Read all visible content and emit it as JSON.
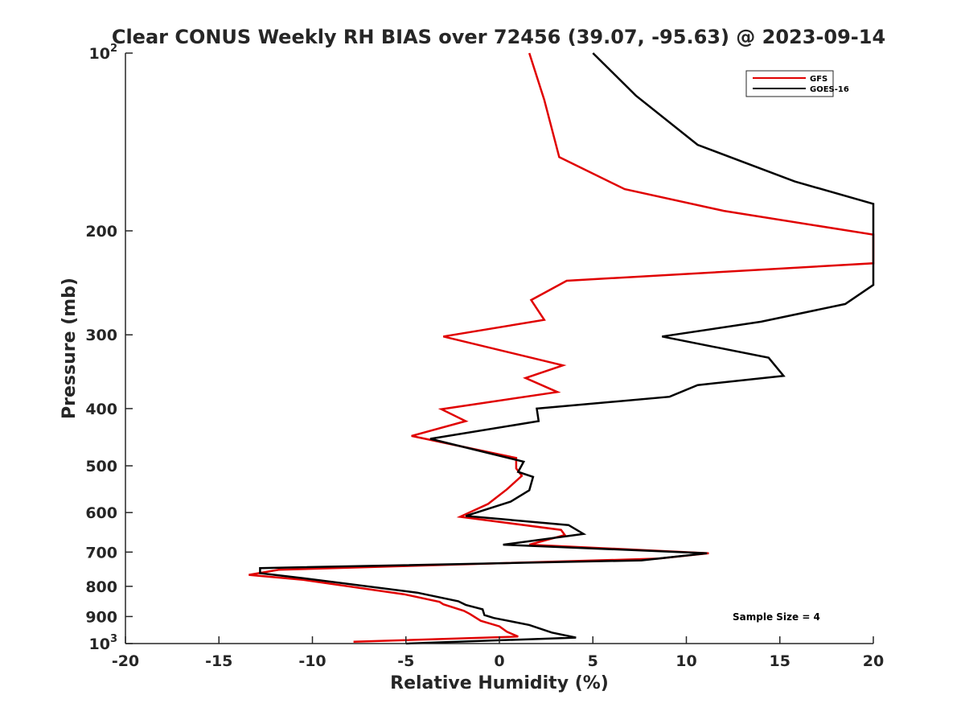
{
  "chart_data": {
    "type": "line",
    "title": "Clear CONUS Weekly RH BIAS over 72456 (39.07, -95.63) @ 2023-09-14",
    "xlabel": "Relative Humidity (%)",
    "ylabel": "Pressure (mb)",
    "xlim": [
      -20,
      20
    ],
    "ylim": [
      1000,
      100
    ],
    "y_scale": "log",
    "x_ticks": [
      "-20",
      "-15",
      "-10",
      "-5",
      "0",
      "5",
      "10",
      "15",
      "20"
    ],
    "x_tick_values": [
      -20,
      -15,
      -10,
      -5,
      0,
      5,
      10,
      15,
      20
    ],
    "y_ticks": [
      {
        "value": 100,
        "base": "10",
        "exp": "2"
      },
      {
        "value": 200,
        "label": "200"
      },
      {
        "value": 300,
        "label": "300"
      },
      {
        "value": 400,
        "label": "400"
      },
      {
        "value": 500,
        "label": "500"
      },
      {
        "value": 600,
        "label": "600"
      },
      {
        "value": 700,
        "label": "700"
      },
      {
        "value": 800,
        "label": "800"
      },
      {
        "value": 900,
        "label": "900"
      },
      {
        "value": 1000,
        "base": "10",
        "exp": "3"
      }
    ],
    "legend_position": "top-right",
    "annotation": "Sample Size = 4",
    "series": [
      {
        "name": "GFS",
        "color": "#e00000",
        "points": [
          {
            "x": 1.6,
            "p": 100
          },
          {
            "x": 2.4,
            "p": 120
          },
          {
            "x": 3.2,
            "p": 150
          },
          {
            "x": 6.7,
            "p": 170
          },
          {
            "x": 12.0,
            "p": 185
          },
          {
            "x": 20.0,
            "p": 203
          },
          {
            "x": 20.0,
            "p": 227
          },
          {
            "x": 3.6,
            "p": 243
          },
          {
            "x": 1.7,
            "p": 262
          },
          {
            "x": 2.4,
            "p": 283
          },
          {
            "x": -3.0,
            "p": 302
          },
          {
            "x": 3.4,
            "p": 338
          },
          {
            "x": 1.4,
            "p": 355
          },
          {
            "x": 3.1,
            "p": 375
          },
          {
            "x": -3.1,
            "p": 401
          },
          {
            "x": -1.8,
            "p": 420
          },
          {
            "x": -4.7,
            "p": 445
          },
          {
            "x": 0.9,
            "p": 485
          },
          {
            "x": 0.9,
            "p": 505
          },
          {
            "x": 1.2,
            "p": 520
          },
          {
            "x": 0.4,
            "p": 548
          },
          {
            "x": -0.6,
            "p": 580
          },
          {
            "x": -2.1,
            "p": 610
          },
          {
            "x": 3.3,
            "p": 642
          },
          {
            "x": 3.5,
            "p": 655
          },
          {
            "x": 1.6,
            "p": 680
          },
          {
            "x": 11.2,
            "p": 703
          },
          {
            "x": 8.5,
            "p": 718
          },
          {
            "x": -11.8,
            "p": 750
          },
          {
            "x": -13.4,
            "p": 765
          },
          {
            "x": -10.5,
            "p": 780
          },
          {
            "x": -5.1,
            "p": 825
          },
          {
            "x": -3.2,
            "p": 850
          },
          {
            "x": -3.0,
            "p": 858
          },
          {
            "x": -1.9,
            "p": 880
          },
          {
            "x": -1.6,
            "p": 890
          },
          {
            "x": -1.0,
            "p": 915
          },
          {
            "x": 0.0,
            "p": 935
          },
          {
            "x": 0.4,
            "p": 955
          },
          {
            "x": 1.0,
            "p": 973
          },
          {
            "x": -7.8,
            "p": 993
          }
        ]
      },
      {
        "name": "GOES-16",
        "color": "#000000",
        "points": [
          {
            "x": 5.0,
            "p": 100
          },
          {
            "x": 7.3,
            "p": 118
          },
          {
            "x": 10.6,
            "p": 143
          },
          {
            "x": 15.8,
            "p": 165
          },
          {
            "x": 20.0,
            "p": 180
          },
          {
            "x": 20.0,
            "p": 247
          },
          {
            "x": 18.5,
            "p": 266
          },
          {
            "x": 14.0,
            "p": 285
          },
          {
            "x": 8.7,
            "p": 302
          },
          {
            "x": 14.4,
            "p": 328
          },
          {
            "x": 15.2,
            "p": 352
          },
          {
            "x": 10.6,
            "p": 365
          },
          {
            "x": 9.1,
            "p": 382
          },
          {
            "x": 2.0,
            "p": 400
          },
          {
            "x": 2.1,
            "p": 420
          },
          {
            "x": -3.7,
            "p": 450
          },
          {
            "x": 1.3,
            "p": 492
          },
          {
            "x": 1.0,
            "p": 512
          },
          {
            "x": 1.8,
            "p": 522
          },
          {
            "x": 1.6,
            "p": 550
          },
          {
            "x": 0.6,
            "p": 575
          },
          {
            "x": -1.8,
            "p": 608
          },
          {
            "x": 3.7,
            "p": 630
          },
          {
            "x": 4.5,
            "p": 652
          },
          {
            "x": 0.2,
            "p": 680
          },
          {
            "x": 11.1,
            "p": 703
          },
          {
            "x": 7.6,
            "p": 723
          },
          {
            "x": -12.8,
            "p": 745
          },
          {
            "x": -12.8,
            "p": 760
          },
          {
            "x": -10.5,
            "p": 775
          },
          {
            "x": -4.4,
            "p": 820
          },
          {
            "x": -2.2,
            "p": 848
          },
          {
            "x": -1.8,
            "p": 860
          },
          {
            "x": -0.9,
            "p": 875
          },
          {
            "x": -0.8,
            "p": 895
          },
          {
            "x": -0.3,
            "p": 905
          },
          {
            "x": 1.6,
            "p": 930
          },
          {
            "x": 2.8,
            "p": 958
          },
          {
            "x": 4.1,
            "p": 977
          },
          {
            "x": -5.0,
            "p": 1000
          }
        ]
      }
    ]
  }
}
